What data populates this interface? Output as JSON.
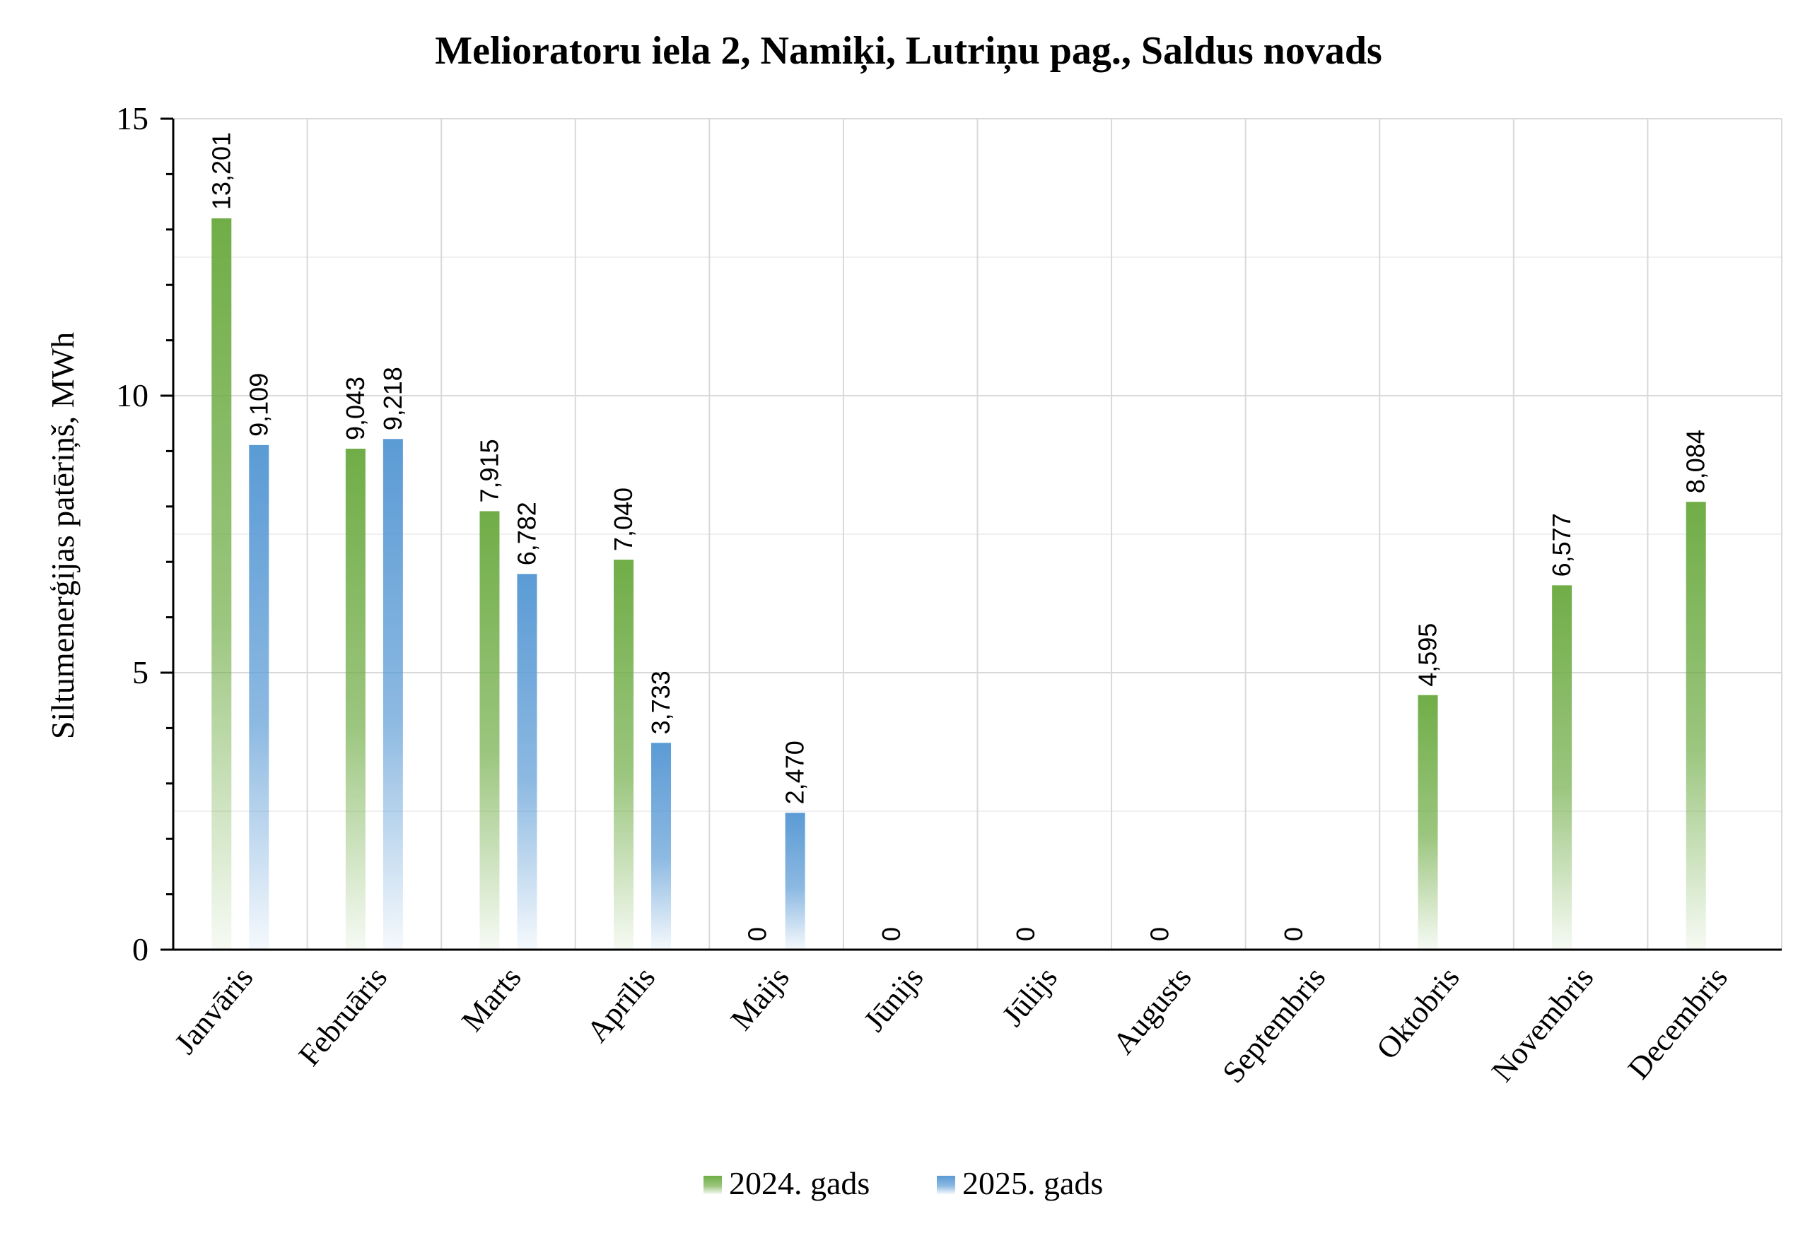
{
  "chart_data": {
    "type": "bar",
    "title": "Melioratoru iela 2, Namiķi, Lutriņu pag., Saldus novads",
    "xlabel": "",
    "ylabel": "Siltumenerģijas patēriņš, MWh",
    "ylim": [
      0,
      15
    ],
    "yticks": [
      0,
      5,
      10,
      15
    ],
    "ytick_labels": [
      "0",
      "5",
      "10",
      "15"
    ],
    "grid": true,
    "legend_position": "bottom",
    "categories": [
      "Janvāris",
      "Februāris",
      "Marts",
      "Aprīlis",
      "Maijs",
      "Jūnijs",
      "Jūlijs",
      "Augusts",
      "Septembris",
      "Oktobris",
      "Novembris",
      "Decembris"
    ],
    "series": [
      {
        "name": "2024. gads",
        "color": "#70ad47",
        "values": [
          13.201,
          9.043,
          7.915,
          7.04,
          0,
          0,
          0,
          0,
          0,
          4.595,
          6.577,
          8.084
        ],
        "labels": [
          "13,201",
          "9,043",
          "7,915",
          "7,040",
          "0",
          "0",
          "0",
          "0",
          "0",
          "4,595",
          "6,577",
          "8,084"
        ]
      },
      {
        "name": "2025. gads",
        "color": "#5b9bd5",
        "values": [
          9.109,
          9.218,
          6.782,
          3.733,
          2.47,
          null,
          null,
          null,
          null,
          null,
          null,
          null
        ],
        "labels": [
          "9,109",
          "9,218",
          "6,782",
          "3,733",
          "2,470",
          null,
          null,
          null,
          null,
          null,
          null,
          null
        ]
      }
    ]
  }
}
